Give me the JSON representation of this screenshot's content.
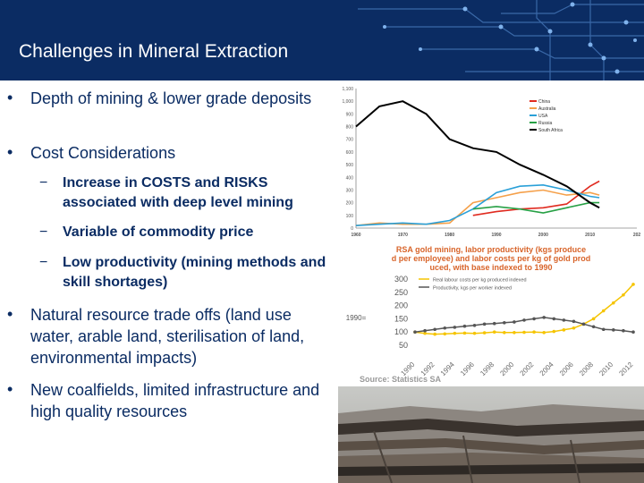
{
  "title": "Challenges in Mineral Extraction",
  "bullets": [
    {
      "text": "Depth of mining & lower grade deposits",
      "sub": []
    },
    {
      "text": "Cost Considerations",
      "sub": [
        "Increase in COSTS and RISKS associated with deep level mining",
        "Variable of commodity price",
        "Low productivity (mining methods and skill shortages)"
      ]
    },
    {
      "text": "Natural resource trade offs (land use water, arable land, sterilisation of land, environmental impacts)",
      "sub": []
    },
    {
      "text": "New coalfields, limited infrastructure and high quality resources",
      "sub": []
    }
  ],
  "bullet_symbol": "•",
  "sub_bullet_symbol": "−",
  "colors": {
    "header": "#0b2c63",
    "text": "#0b2c63"
  },
  "chart_data": [
    {
      "type": "line",
      "title": "",
      "xlabel": "",
      "ylabel": "",
      "x": [
        1960,
        1965,
        1970,
        1975,
        1980,
        1985,
        1990,
        1995,
        2000,
        2005,
        2010,
        2012
      ],
      "x_ticks": [
        "1960",
        "1970",
        "1980",
        "1990",
        "2000",
        "2010",
        "202"
      ],
      "ylim": [
        0,
        1100
      ],
      "y_ticks": [
        "0",
        "100",
        "200",
        "300",
        "400",
        "500",
        "600",
        "700",
        "800",
        "900",
        "1,000",
        "1,100"
      ],
      "series": [
        {
          "name": "China",
          "color": "#e02b20",
          "values": [
            null,
            null,
            null,
            null,
            null,
            100,
            130,
            150,
            160,
            190,
            330,
            370
          ]
        },
        {
          "name": "Australia",
          "color": "#f5a04a",
          "values": [
            20,
            40,
            30,
            30,
            40,
            200,
            240,
            280,
            300,
            260,
            280,
            260
          ]
        },
        {
          "name": "USA",
          "color": "#2aa0d8",
          "values": [
            20,
            30,
            40,
            30,
            60,
            150,
            280,
            330,
            340,
            300,
            250,
            240
          ]
        },
        {
          "name": "Russia",
          "color": "#27a045",
          "values": [
            null,
            null,
            null,
            null,
            null,
            150,
            170,
            150,
            120,
            160,
            200,
            200
          ]
        },
        {
          "name": "South Africa",
          "color": "#000000",
          "values": [
            800,
            960,
            1000,
            900,
            700,
            630,
            600,
            500,
            420,
            330,
            200,
            160
          ]
        }
      ],
      "legend": "top-right",
      "grid": false
    },
    {
      "type": "line",
      "title": "RSA gold mining, labor productivity (kgs produced per employee) and labor costs per kg of gold produced, with base indexed to 1990",
      "ylabel": "1990=",
      "x": [
        "1990",
        "1991",
        "1992",
        "1993",
        "1994",
        "1995",
        "1996",
        "1997",
        "1998",
        "1999",
        "2000",
        "2001",
        "2002",
        "2003",
        "2004",
        "2005",
        "2006",
        "2007",
        "2008",
        "2009",
        "2010",
        "2011",
        "2012"
      ],
      "ylim": [
        50,
        300
      ],
      "y_ticks": [
        "50",
        "100",
        "150",
        "200",
        "250",
        "300"
      ],
      "x_ticks": [
        "1990",
        "1992",
        "1994",
        "1996",
        "1998",
        "2000",
        "2002",
        "2004",
        "2006",
        "2008",
        "2010",
        "2012"
      ],
      "series": [
        {
          "name": "Real labour costs per kg produced indexed",
          "color": "#f5c400",
          "values": [
            100,
            95,
            92,
            93,
            95,
            96,
            95,
            97,
            100,
            98,
            98,
            99,
            100,
            98,
            102,
            108,
            115,
            130,
            150,
            180,
            210,
            240,
            280
          ]
        },
        {
          "name": "Productivity, kgs per worker indexed",
          "color": "#555555",
          "values": [
            100,
            105,
            110,
            115,
            118,
            122,
            125,
            130,
            132,
            135,
            138,
            145,
            150,
            155,
            150,
            145,
            140,
            130,
            120,
            110,
            108,
            105,
            100
          ]
        }
      ],
      "source": "Source: Statistics SA",
      "legend": "top-left",
      "grid": false
    }
  ]
}
